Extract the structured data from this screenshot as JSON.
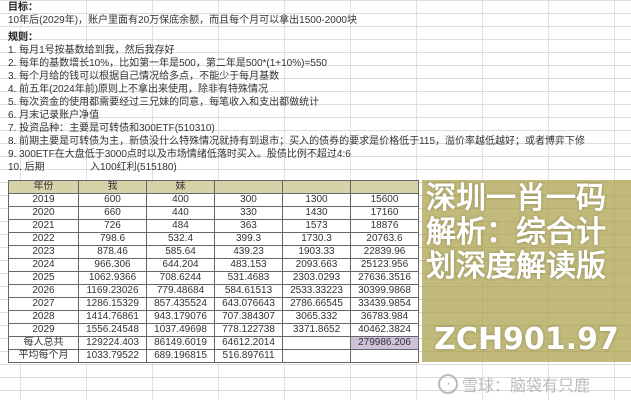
{
  "goal": {
    "heading": "目标：",
    "text": "10年后(2029年)，账户里面有20万保底余额，而且每个月可以拿出1500-2000块"
  },
  "rules": {
    "heading": "规则：",
    "items": [
      "1. 每月1号按基数给到我，然后我存好",
      "2. 每年的基数增长10%，比如第一年是500，第二年是500*(1+10%)=550",
      "3. 每个月给的钱可以根据自己情况给多点，不能少于每月基数",
      "4. 前五年(2024年前)原则上不拿出来使用，除非有特殊情况",
      "5. 每次资金的使用都需要经过三兄妹的同意，每笔收入和支出都做统计",
      "6. 月末记录账户净值",
      "7. 投资品种：主要是可转债和300ETF(510310)",
      "8. 前期主要是可转债为主，新债没什么特殊情况就持有到退市；买入的债券的要求是价格低于115，溢价率越低越好；或者博弈下修",
      "9. 300ETF在大盘低于3000点时以及市场情绪低落时买入。股债比例不超过4:6",
      "10. 后期",
      "入100红利(515180)"
    ]
  },
  "table": {
    "headers": [
      "年份",
      "我",
      "妹",
      "",
      "",
      ""
    ],
    "rows": [
      [
        "2019",
        "600",
        "400",
        "300",
        "1300",
        "15600"
      ],
      [
        "2020",
        "660",
        "440",
        "330",
        "1430",
        "17160"
      ],
      [
        "2021",
        "726",
        "484",
        "363",
        "1573",
        "18876"
      ],
      [
        "2022",
        "798.6",
        "532.4",
        "399.3",
        "1730.3",
        "20763.6"
      ],
      [
        "2023",
        "878.46",
        "585.64",
        "439.23",
        "1903.33",
        "22839.96"
      ],
      [
        "2024",
        "966.306",
        "644.204",
        "483.153",
        "2093.663",
        "25123.956"
      ],
      [
        "2025",
        "1062.9366",
        "708.6244",
        "531.4683",
        "2303.0293",
        "27636.3516"
      ],
      [
        "2026",
        "1169.23026",
        "779.48684",
        "584.61513",
        "2533.33223",
        "30399.9868"
      ],
      [
        "2027",
        "1286.15329",
        "857.435524",
        "643.076643",
        "2786.66545",
        "33439.9854"
      ],
      [
        "2028",
        "1414.76861",
        "943.179076",
        "707.384307",
        "3065.332",
        "36783.984"
      ],
      [
        "2029",
        "1556.24548",
        "1037.49698",
        "778.122738",
        "3371.8652",
        "40462.3824"
      ],
      [
        "每人总共",
        "129224.403",
        "86149.6019",
        "64612.2014",
        "",
        "279986.206"
      ],
      [
        "平均每个月",
        "1033.79522",
        "689.196815",
        "516.897611",
        "",
        ""
      ]
    ]
  },
  "banner": {
    "title": "深圳一肖一码解析：综合计划深度解读版",
    "subtitle": "ZCH901.97",
    "color": "#aaa046"
  },
  "watermark": {
    "text": "雪球：脑袋有只鹿",
    "icon": "snowball-logo-icon"
  }
}
